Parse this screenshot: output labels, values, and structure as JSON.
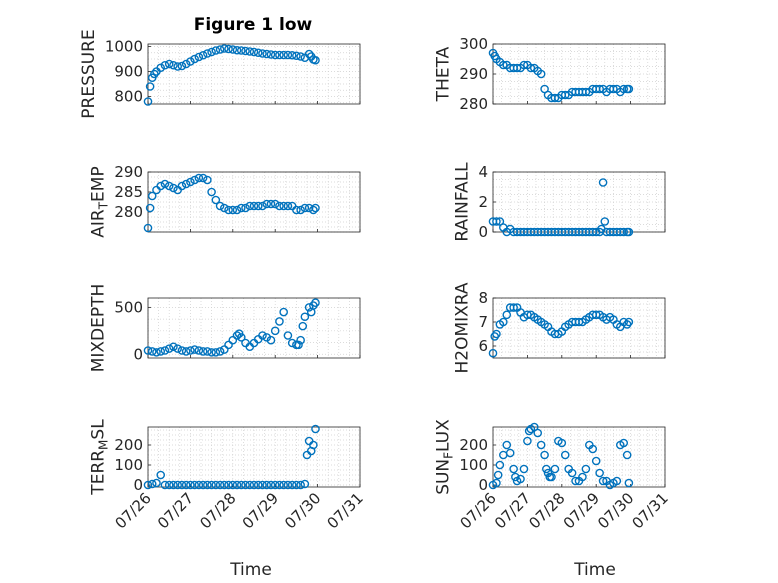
{
  "figure": {
    "title": "Figure 1 low",
    "xlabel": "Time",
    "marker_color": "#0072BD",
    "x_ticks": [
      "07/26",
      "07/27",
      "07/28",
      "07/29",
      "07/30",
      "07/31"
    ]
  },
  "chart_data": [
    {
      "type": "scatter",
      "title": "Figure 1 low",
      "ylabel": "PRESSURE",
      "xlim": [
        0,
        5
      ],
      "ylim": [
        770,
        1010
      ],
      "yticks": [
        800,
        900,
        1000
      ],
      "grid": true,
      "x": [
        0.0,
        0.05,
        0.1,
        0.15,
        0.2,
        0.3,
        0.4,
        0.5,
        0.6,
        0.7,
        0.8,
        0.9,
        1.0,
        1.1,
        1.2,
        1.3,
        1.4,
        1.5,
        1.6,
        1.7,
        1.8,
        1.9,
        2.0,
        2.1,
        2.2,
        2.3,
        2.4,
        2.5,
        2.6,
        2.7,
        2.8,
        2.9,
        3.0,
        3.1,
        3.2,
        3.3,
        3.4,
        3.5,
        3.6,
        3.7,
        3.8,
        3.85,
        3.9,
        3.95
      ],
      "y": [
        780,
        840,
        875,
        890,
        900,
        915,
        925,
        930,
        925,
        920,
        922,
        930,
        940,
        950,
        958,
        965,
        972,
        978,
        984,
        988,
        992,
        990,
        988,
        985,
        984,
        982,
        980,
        978,
        975,
        972,
        970,
        968,
        966,
        966,
        966,
        966,
        965,
        963,
        960,
        955,
        970,
        960,
        948,
        945
      ]
    },
    {
      "type": "scatter",
      "ylabel": "THETA",
      "xlim": [
        0,
        5
      ],
      "ylim": [
        280,
        300
      ],
      "yticks": [
        280,
        290,
        300
      ],
      "grid": true,
      "x": [
        0.0,
        0.05,
        0.1,
        0.2,
        0.3,
        0.4,
        0.5,
        0.6,
        0.7,
        0.8,
        0.9,
        1.0,
        1.1,
        1.2,
        1.3,
        1.4,
        1.5,
        1.6,
        1.7,
        1.8,
        1.9,
        2.0,
        2.1,
        2.2,
        2.3,
        2.4,
        2.5,
        2.6,
        2.7,
        2.8,
        2.9,
        3.0,
        3.1,
        3.2,
        3.3,
        3.4,
        3.5,
        3.6,
        3.7,
        3.8,
        3.9,
        3.95
      ],
      "y": [
        297,
        296,
        295,
        294,
        293,
        293,
        292,
        292,
        292,
        292,
        293,
        293,
        292,
        292,
        291,
        290,
        285,
        283,
        282,
        282,
        282,
        283,
        283,
        283,
        284,
        284,
        284,
        284,
        284,
        284,
        285,
        285,
        285,
        285,
        284,
        285,
        285,
        285,
        284,
        285,
        285,
        285
      ]
    },
    {
      "type": "scatter",
      "ylabel": "AIR_TEMP",
      "xlim": [
        0,
        5
      ],
      "ylim": [
        275,
        290
      ],
      "yticks": [
        280,
        285,
        290
      ],
      "grid": true,
      "x": [
        0.0,
        0.05,
        0.1,
        0.2,
        0.3,
        0.4,
        0.5,
        0.6,
        0.7,
        0.8,
        0.9,
        1.0,
        1.1,
        1.2,
        1.3,
        1.4,
        1.5,
        1.6,
        1.7,
        1.8,
        1.9,
        2.0,
        2.1,
        2.2,
        2.3,
        2.4,
        2.5,
        2.6,
        2.7,
        2.8,
        2.9,
        3.0,
        3.1,
        3.2,
        3.3,
        3.4,
        3.5,
        3.6,
        3.7,
        3.8,
        3.9,
        3.95
      ],
      "y": [
        276,
        281,
        284,
        285.5,
        286.5,
        287,
        286.5,
        286,
        285.5,
        286.5,
        287,
        287.5,
        288,
        288.5,
        288.5,
        288,
        285,
        283,
        281.5,
        281,
        280.5,
        280.5,
        280.5,
        281,
        281,
        281.5,
        281.5,
        281.5,
        281.5,
        282,
        282,
        282,
        281.5,
        281.5,
        281.5,
        281.5,
        280.5,
        280.5,
        281,
        281,
        280.5,
        281
      ]
    },
    {
      "type": "scatter",
      "ylabel": "RAINFALL",
      "xlim": [
        0,
        5
      ],
      "ylim": [
        0,
        4
      ],
      "yticks": [
        0,
        2,
        4
      ],
      "grid": true,
      "x": [
        0.0,
        0.1,
        0.2,
        0.3,
        0.4,
        0.5,
        0.6,
        0.7,
        0.8,
        0.9,
        1.0,
        1.1,
        1.2,
        1.3,
        1.4,
        1.5,
        1.6,
        1.7,
        1.8,
        1.9,
        2.0,
        2.1,
        2.2,
        2.3,
        2.4,
        2.5,
        2.6,
        2.7,
        2.8,
        2.9,
        3.0,
        3.1,
        3.15,
        3.2,
        3.25,
        3.3,
        3.4,
        3.5,
        3.6,
        3.7,
        3.8,
        3.9,
        3.95
      ],
      "y": [
        0.7,
        0.7,
        0.7,
        0.3,
        0,
        0.2,
        0,
        0,
        0,
        0,
        0,
        0,
        0,
        0,
        0,
        0,
        0,
        0,
        0,
        0,
        0,
        0,
        0,
        0,
        0,
        0,
        0,
        0,
        0,
        0,
        0,
        0,
        0.2,
        3.3,
        0.7,
        0,
        0,
        0,
        0,
        0,
        0,
        0,
        0
      ]
    },
    {
      "type": "scatter",
      "ylabel": "MIXDEPTH",
      "xlim": [
        0,
        5
      ],
      "ylim": [
        -40,
        600
      ],
      "yticks": [
        0,
        500
      ],
      "grid": true,
      "x": [
        0.0,
        0.1,
        0.2,
        0.3,
        0.4,
        0.5,
        0.6,
        0.7,
        0.8,
        0.9,
        1.0,
        1.1,
        1.2,
        1.3,
        1.4,
        1.5,
        1.6,
        1.7,
        1.8,
        1.9,
        2.0,
        2.1,
        2.15,
        2.2,
        2.3,
        2.4,
        2.5,
        2.6,
        2.7,
        2.8,
        2.9,
        3.0,
        3.1,
        3.2,
        3.3,
        3.4,
        3.5,
        3.55,
        3.6,
        3.65,
        3.7,
        3.8,
        3.85,
        3.9,
        3.95
      ],
      "y": [
        40,
        30,
        20,
        30,
        40,
        60,
        80,
        60,
        40,
        30,
        40,
        50,
        40,
        30,
        30,
        20,
        20,
        30,
        50,
        100,
        150,
        200,
        220,
        180,
        120,
        80,
        120,
        160,
        200,
        180,
        150,
        250,
        350,
        450,
        200,
        120,
        100,
        100,
        150,
        300,
        400,
        500,
        450,
        520,
        550
      ]
    },
    {
      "type": "scatter",
      "ylabel": "H2OMIXRA",
      "xlim": [
        0,
        5
      ],
      "ylim": [
        5.5,
        8
      ],
      "yticks": [
        6,
        7,
        8
      ],
      "grid": true,
      "x": [
        0.0,
        0.05,
        0.1,
        0.2,
        0.3,
        0.4,
        0.5,
        0.6,
        0.7,
        0.8,
        0.9,
        1.0,
        1.1,
        1.2,
        1.3,
        1.4,
        1.5,
        1.6,
        1.7,
        1.8,
        1.9,
        2.0,
        2.1,
        2.2,
        2.3,
        2.4,
        2.5,
        2.6,
        2.7,
        2.8,
        2.9,
        3.0,
        3.1,
        3.2,
        3.3,
        3.4,
        3.5,
        3.6,
        3.7,
        3.8,
        3.9,
        3.95
      ],
      "y": [
        5.7,
        6.4,
        6.5,
        6.9,
        7.0,
        7.3,
        7.6,
        7.6,
        7.6,
        7.4,
        7.2,
        7.3,
        7.3,
        7.2,
        7.1,
        7.0,
        6.9,
        6.8,
        6.6,
        6.5,
        6.5,
        6.6,
        6.8,
        6.9,
        7.0,
        7.0,
        7.0,
        7.0,
        7.1,
        7.2,
        7.3,
        7.3,
        7.3,
        7.2,
        7.1,
        7.2,
        7.1,
        6.9,
        6.8,
        7.0,
        6.9,
        7.0
      ]
    },
    {
      "type": "scatter",
      "ylabel": "TERR_MSL",
      "xlim": [
        0,
        5
      ],
      "ylim": [
        -10,
        290
      ],
      "yticks": [
        0,
        100,
        200
      ],
      "grid": true,
      "x": [
        0.0,
        0.1,
        0.2,
        0.3,
        0.4,
        0.5,
        0.6,
        0.7,
        0.8,
        0.9,
        1.0,
        1.1,
        1.2,
        1.3,
        1.4,
        1.5,
        1.6,
        1.7,
        1.8,
        1.9,
        2.0,
        2.1,
        2.2,
        2.3,
        2.4,
        2.5,
        2.6,
        2.7,
        2.8,
        2.9,
        3.0,
        3.1,
        3.2,
        3.3,
        3.4,
        3.5,
        3.6,
        3.7,
        3.75,
        3.8,
        3.85,
        3.9,
        3.95
      ],
      "y": [
        0,
        5,
        10,
        50,
        0,
        0,
        0,
        0,
        0,
        0,
        0,
        0,
        0,
        0,
        0,
        0,
        0,
        0,
        0,
        0,
        0,
        0,
        0,
        0,
        0,
        0,
        0,
        0,
        0,
        0,
        0,
        0,
        0,
        0,
        0,
        0,
        0,
        5,
        150,
        220,
        170,
        200,
        280
      ]
    },
    {
      "type": "scatter",
      "ylabel": "SUN_FLUX",
      "xlim": [
        0,
        5
      ],
      "ylim": [
        -10,
        290
      ],
      "yticks": [
        0,
        100,
        200
      ],
      "grid": true,
      "x": [
        0.0,
        0.1,
        0.15,
        0.2,
        0.3,
        0.4,
        0.5,
        0.6,
        0.65,
        0.7,
        0.8,
        0.9,
        1.0,
        1.05,
        1.1,
        1.2,
        1.3,
        1.4,
        1.5,
        1.55,
        1.6,
        1.65,
        1.7,
        1.8,
        1.9,
        2.0,
        2.1,
        2.2,
        2.3,
        2.4,
        2.5,
        2.6,
        2.7,
        2.8,
        2.9,
        3.0,
        3.1,
        3.2,
        3.3,
        3.4,
        3.5,
        3.6,
        3.7,
        3.8,
        3.9,
        3.95
      ],
      "y": [
        0,
        10,
        50,
        100,
        150,
        200,
        160,
        80,
        40,
        20,
        30,
        80,
        220,
        270,
        280,
        290,
        260,
        200,
        150,
        80,
        60,
        40,
        40,
        80,
        220,
        210,
        150,
        80,
        60,
        20,
        20,
        40,
        80,
        200,
        180,
        120,
        60,
        20,
        20,
        0,
        10,
        20,
        200,
        210,
        150,
        10
      ]
    }
  ]
}
